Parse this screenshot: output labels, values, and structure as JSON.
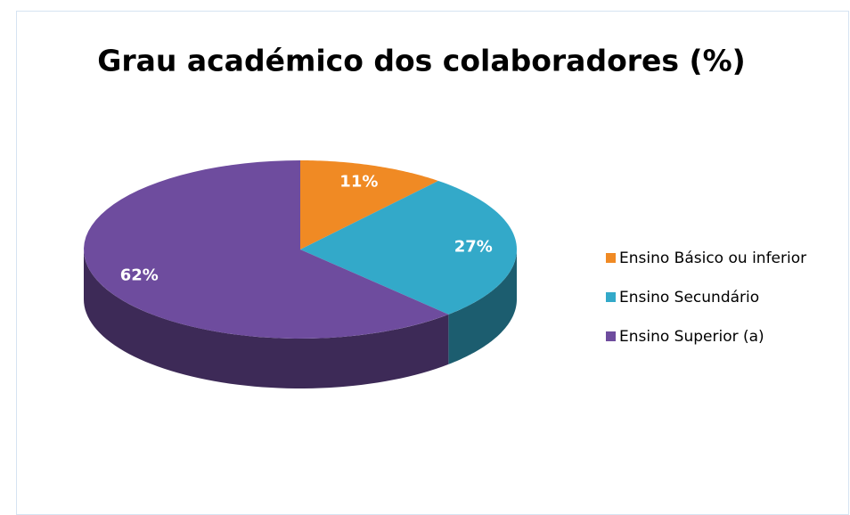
{
  "chart_data": {
    "type": "pie",
    "title": "Grau académico dos colaboradores (%)",
    "categories": [
      "Ensino Básico ou inferior",
      "Ensino Secundário",
      "Ensino Superior (a)"
    ],
    "values": [
      11,
      27,
      62
    ],
    "value_labels": [
      "11%",
      "27%",
      "62%"
    ],
    "colors": [
      "#f08a24",
      "#33a9c9",
      "#6e4c9e"
    ],
    "legend": "right"
  }
}
